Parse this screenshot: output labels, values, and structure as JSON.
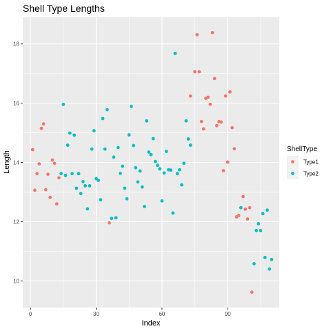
{
  "chart_data": {
    "type": "scatter",
    "title": "Shell Type Lengths",
    "xlabel": "Index",
    "ylabel": "Length",
    "xlim": [
      -3.5,
      113.5
    ],
    "ylim": [
      9.1,
      18.9
    ],
    "x_ticks": [
      0,
      30,
      60,
      90
    ],
    "y_ticks": [
      10,
      12,
      14,
      16,
      18
    ],
    "x_minor": [
      15,
      45,
      75,
      105
    ],
    "y_minor": [
      11,
      13,
      15,
      17
    ],
    "grid": true,
    "legend": {
      "title": "ShellType",
      "position": "right"
    },
    "series": [
      {
        "name": "Type1",
        "color": "#F8766D",
        "points": [
          [
            1,
            14.43
          ],
          [
            2,
            13.06
          ],
          [
            3,
            13.62
          ],
          [
            4,
            13.95
          ],
          [
            5,
            15.15
          ],
          [
            6,
            15.3
          ],
          [
            7,
            13.08
          ],
          [
            8,
            13.6
          ],
          [
            9,
            12.82
          ],
          [
            10,
            14.08
          ],
          [
            11,
            13.97
          ],
          [
            12,
            12.6
          ],
          [
            13,
            13.48
          ],
          [
            36,
            11.96
          ],
          [
            73,
            16.24
          ],
          [
            75,
            17.06
          ],
          [
            76,
            18.31
          ],
          [
            77,
            17.06
          ],
          [
            78,
            15.38
          ],
          [
            79,
            15.13
          ],
          [
            80,
            16.16
          ],
          [
            81,
            16.2
          ],
          [
            82,
            15.96
          ],
          [
            83,
            18.38
          ],
          [
            84,
            16.83
          ],
          [
            85,
            15.24
          ],
          [
            86,
            15.38
          ],
          [
            87,
            15.36
          ],
          [
            88,
            13.72
          ],
          [
            89,
            16.24
          ],
          [
            90,
            14.01
          ],
          [
            91,
            16.38
          ],
          [
            92,
            15.17
          ],
          [
            93,
            14.46
          ],
          [
            94,
            12.16
          ],
          [
            95,
            12.21
          ],
          [
            97,
            12.85
          ],
          [
            98,
            12.42
          ],
          [
            99,
            12.09
          ],
          [
            100,
            12.47
          ],
          [
            101,
            9.62
          ]
        ]
      },
      {
        "name": "Type2",
        "color": "#00BFC4",
        "points": [
          [
            14,
            13.62
          ],
          [
            15,
            15.96
          ],
          [
            16,
            13.56
          ],
          [
            17,
            14.58
          ],
          [
            18,
            14.99
          ],
          [
            19,
            13.62
          ],
          [
            20,
            14.92
          ],
          [
            21,
            13.13
          ],
          [
            22,
            13.62
          ],
          [
            23,
            12.95
          ],
          [
            24,
            13.35
          ],
          [
            25,
            13.21
          ],
          [
            26,
            12.43
          ],
          [
            27,
            13.21
          ],
          [
            28,
            14.45
          ],
          [
            29,
            15.07
          ],
          [
            30,
            13.45
          ],
          [
            31,
            13.39
          ],
          [
            32,
            12.74
          ],
          [
            33,
            15.48
          ],
          [
            34,
            14.45
          ],
          [
            35,
            15.78
          ],
          [
            37,
            12.11
          ],
          [
            38,
            14.18
          ],
          [
            39,
            12.13
          ],
          [
            40,
            14.5
          ],
          [
            41,
            13.63
          ],
          [
            42,
            13.87
          ],
          [
            43,
            13.13
          ],
          [
            44,
            12.77
          ],
          [
            45,
            14.93
          ],
          [
            46,
            15.89
          ],
          [
            47,
            14.57
          ],
          [
            48,
            13.82
          ],
          [
            49,
            13.34
          ],
          [
            50,
            13.71
          ],
          [
            51,
            13.17
          ],
          [
            52,
            12.51
          ],
          [
            53,
            15.4
          ],
          [
            54,
            14.35
          ],
          [
            55,
            14.26
          ],
          [
            56,
            14.8
          ],
          [
            57,
            14.03
          ],
          [
            58,
            13.9
          ],
          [
            59,
            13.78
          ],
          [
            60,
            12.7
          ],
          [
            61,
            13.64
          ],
          [
            62,
            14.37
          ],
          [
            63,
            13.75
          ],
          [
            64,
            13.74
          ],
          [
            65,
            12.29
          ],
          [
            66,
            17.68
          ],
          [
            67,
            13.62
          ],
          [
            68,
            13.75
          ],
          [
            69,
            13.24
          ],
          [
            70,
            13.97
          ],
          [
            71,
            15.4
          ],
          [
            72,
            14.79
          ],
          [
            73,
            14.58
          ],
          [
            96,
            12.47
          ],
          [
            102,
            10.58
          ],
          [
            103,
            11.7
          ],
          [
            104,
            11.93
          ],
          [
            105,
            11.7
          ],
          [
            106,
            12.27
          ],
          [
            107,
            10.79
          ],
          [
            108,
            12.39
          ],
          [
            109,
            10.4
          ],
          [
            110,
            10.72
          ]
        ]
      }
    ]
  }
}
